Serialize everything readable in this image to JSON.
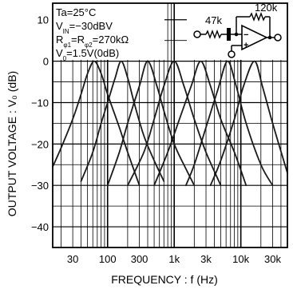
{
  "chart_data": {
    "type": "line",
    "title": "",
    "xlabel": "FREQUENCY : f (Hz)",
    "ylabel": "OUTPUT VOLTAGE : V₀ (dB)",
    "x_scale": "log",
    "xlim": [
      15,
      50000
    ],
    "ylim": [
      -45,
      14
    ],
    "grid": true,
    "x_ticks": [
      {
        "value": 30,
        "label": "30"
      },
      {
        "value": 100,
        "label": "100"
      },
      {
        "value": 300,
        "label": "300"
      },
      {
        "value": 1000,
        "label": "1k"
      },
      {
        "value": 3000,
        "label": "3k"
      },
      {
        "value": 10000,
        "label": "10k"
      },
      {
        "value": 30000,
        "label": "30k"
      }
    ],
    "y_ticks": [
      {
        "value": 10,
        "label": "10"
      },
      {
        "value": 0,
        "label": "0"
      },
      {
        "value": -10,
        "label": "−10"
      },
      {
        "value": -20,
        "label": "−20"
      },
      {
        "value": -30,
        "label": "−30"
      },
      {
        "value": -40,
        "label": "−40"
      }
    ],
    "series": [
      {
        "center": 63,
        "points": [
          [
            15,
            -25.5
          ],
          [
            20,
            -21
          ],
          [
            30,
            -14
          ],
          [
            40,
            -8
          ],
          [
            50,
            -3
          ],
          [
            63,
            0
          ],
          [
            80,
            -3
          ],
          [
            100,
            -8
          ],
          [
            150,
            -16
          ],
          [
            200,
            -22
          ],
          [
            300,
            -30
          ]
        ]
      },
      {
        "center": 160,
        "points": [
          [
            40,
            -29
          ],
          [
            60,
            -22
          ],
          [
            80,
            -15
          ],
          [
            100,
            -10
          ],
          [
            130,
            -4
          ],
          [
            160,
            0
          ],
          [
            200,
            -4
          ],
          [
            250,
            -10
          ],
          [
            350,
            -18
          ],
          [
            500,
            -24
          ],
          [
            700,
            -29
          ]
        ]
      },
      {
        "center": 400,
        "points": [
          [
            100,
            -30
          ],
          [
            150,
            -22
          ],
          [
            200,
            -15
          ],
          [
            300,
            -6
          ],
          [
            400,
            0
          ],
          [
            550,
            -6
          ],
          [
            700,
            -12
          ],
          [
            1000,
            -20
          ],
          [
            1500,
            -26
          ],
          [
            2000,
            -30
          ]
        ]
      },
      {
        "center": 1000,
        "points": [
          [
            200,
            -30
          ],
          [
            350,
            -22
          ],
          [
            500,
            -14
          ],
          [
            700,
            -6
          ],
          [
            1000,
            0
          ],
          [
            1400,
            -6
          ],
          [
            2000,
            -14
          ],
          [
            3000,
            -22
          ],
          [
            5000,
            -30
          ]
        ]
      },
      {
        "center": 2500,
        "points": [
          [
            500,
            -30
          ],
          [
            800,
            -22
          ],
          [
            1200,
            -14
          ],
          [
            1800,
            -6
          ],
          [
            2500,
            0
          ],
          [
            3500,
            -6
          ],
          [
            5000,
            -14
          ],
          [
            8000,
            -22
          ],
          [
            12000,
            -30
          ]
        ]
      },
      {
        "center": 6300,
        "points": [
          [
            1500,
            -30
          ],
          [
            2000,
            -25
          ],
          [
            3000,
            -16
          ],
          [
            4500,
            -7
          ],
          [
            6300,
            0
          ],
          [
            8500,
            -6
          ],
          [
            12000,
            -15
          ],
          [
            20000,
            -25
          ],
          [
            30000,
            -30
          ]
        ]
      },
      {
        "center": 16000,
        "points": [
          [
            3500,
            -30
          ],
          [
            5000,
            -24
          ],
          [
            8000,
            -14
          ],
          [
            11000,
            -6
          ],
          [
            16000,
            0
          ],
          [
            21000,
            -6
          ],
          [
            30000,
            -15
          ],
          [
            50000,
            -27
          ]
        ]
      }
    ],
    "annotations": [
      {
        "key": "ta",
        "segments": [
          [
            "Ta",
            ""
          ],
          [
            "=25°C",
            ""
          ]
        ]
      },
      {
        "key": "vin",
        "segments": [
          [
            "V",
            ""
          ],
          [
            "IN",
            "sub"
          ],
          [
            "=−30dBV",
            ""
          ]
        ]
      },
      {
        "key": "rphi",
        "segments": [
          [
            "R",
            ""
          ],
          [
            "φ1",
            "sub"
          ],
          [
            "=R",
            ""
          ],
          [
            "φ2",
            "sub"
          ],
          [
            "=270kΩ",
            ""
          ]
        ]
      },
      {
        "key": "vo",
        "segments": [
          [
            "V",
            ""
          ],
          [
            "0",
            "sub"
          ],
          [
            "=1.5V(0dB)",
            ""
          ]
        ]
      }
    ],
    "schematic": {
      "r_in_label": "47k",
      "r_fb_label": "120k",
      "op_minus": "−",
      "op_plus": "+"
    },
    "colors": {
      "curve": "#1a1a1a",
      "grid": "#000000",
      "text": "#000000",
      "background": "#ffffff"
    }
  }
}
